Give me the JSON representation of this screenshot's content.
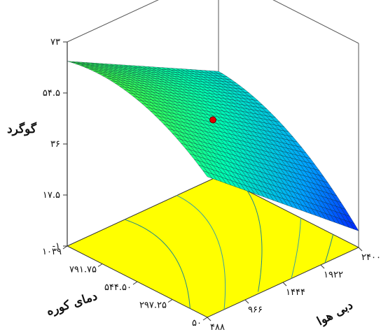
{
  "chart_data": {
    "type": "surface",
    "title": "",
    "zlabel": "گوگرد",
    "xlabel": "دمای کوره",
    "ylabel": "دبی هوا",
    "z_ticks": [
      "۷۳",
      "۵۴.۵",
      "۳۶",
      "۱۷.۵",
      "-۱"
    ],
    "z_tick_values": [
      73,
      54.5,
      36,
      17.5,
      -1
    ],
    "x_ticks": [
      "۱۰۳۹",
      "۷۹۱.۷۵",
      "۵۴۴.۵۰",
      "۲۹۷.۲۵",
      "۵۰"
    ],
    "x_tick_values": [
      1039,
      791.75,
      544.5,
      297.25,
      50
    ],
    "y_ticks": [
      "۴۸۸",
      "۹۶۶",
      "۱۴۴۴",
      "۱۹۲۲",
      "۲۴۰۰"
    ],
    "y_tick_values": [
      488,
      966,
      1444,
      1922,
      2400
    ],
    "z_range": [
      -1,
      73
    ],
    "x_range": [
      50,
      1039
    ],
    "y_range": [
      488,
      2400
    ],
    "corner_values": [
      {
        "x": 1039,
        "y": 488,
        "z": 66
      },
      {
        "x": 1039,
        "y": 2400,
        "z": 37
      },
      {
        "x": 50,
        "y": 488,
        "z": 50
      },
      {
        "x": 50,
        "y": 2400,
        "z": 5
      }
    ],
    "design_point": {
      "x": 544.5,
      "y": 1444,
      "z": 45
    },
    "surface_colormap": [
      "#0000ff",
      "#00a0ff",
      "#00ffb0",
      "#40ff40"
    ],
    "floor_color": "#ffff00",
    "grid": true
  }
}
